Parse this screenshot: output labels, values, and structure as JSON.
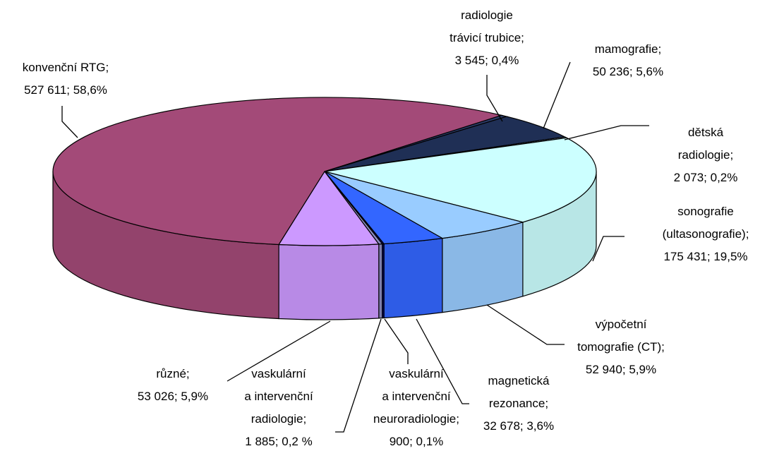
{
  "chart_data": {
    "type": "pie",
    "categories": [
      "konvenční RTG;",
      "radiologie\ntrávicí trubice;",
      "mamografie;",
      "dětská radiologie;",
      "sonografie\n(ultasonografie);",
      "výpočetní\ntomografie (CT);",
      "magnetická\nrezonance;",
      "vaskulární\na intervenční\nneuroradiologie;",
      "vaskulární\na intervenční\nradiologie;",
      "různé;"
    ],
    "values": [
      527611,
      3545,
      50236,
      2073,
      175431,
      52940,
      32678,
      900,
      1885,
      53026
    ],
    "value_labels": [
      "527 611; 58,6%",
      "3 545; 0,4%",
      "50 236; 5,6%",
      "2 073; 0,2%",
      "175 431; 19,5%",
      "52 940; 5,9%",
      "32 678; 3,6%",
      "900; 0,1%",
      "1 885; 0,2 %",
      "53 026; 5,9%"
    ],
    "colors": [
      "#a34a78",
      "#2a3a66",
      "#1f2f55",
      "#8faac8",
      "#ccffff",
      "#99ccff",
      "#3366ff",
      "#000080",
      "#8c8cc0",
      "#cc99ff"
    ]
  }
}
